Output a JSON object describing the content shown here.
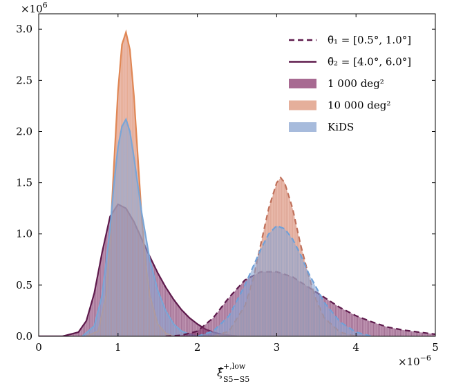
{
  "chart_data": {
    "type": "area",
    "title": "",
    "xlabel": "ξ̂",
    "xlabel_sup": "+,low",
    "xlabel_sub": "S5−S5",
    "x_scale_label": "×10",
    "x_scale_exp": "−6",
    "y_scale_label": "×10",
    "y_scale_exp": "6",
    "xlim": [
      0,
      5
    ],
    "ylim": [
      0,
      3.15
    ],
    "xticks": [
      0,
      1,
      2,
      3,
      4,
      5
    ],
    "xtick_labels": [
      "0",
      "1",
      "2",
      "3",
      "4",
      "5"
    ],
    "yticks": [
      0,
      0.5,
      1.0,
      1.5,
      2.0,
      2.5,
      3.0
    ],
    "ytick_labels": [
      "0.0",
      "0.5",
      "1.0",
      "1.5",
      "2.0",
      "2.5",
      "3.0"
    ],
    "grid": false,
    "legend_position": "top-right",
    "legend": [
      {
        "label": "θ̄₁ = [0.5°, 1.0°]",
        "style": "dashed-line",
        "color": "#5e1a4c"
      },
      {
        "label": "θ̄₂ = [4.0°, 6.0°]",
        "style": "solid-line",
        "color": "#5e1a4c"
      },
      {
        "label": "1 000 deg²",
        "style": "patch",
        "color": "#9e5a86"
      },
      {
        "label": "10 000 deg²",
        "style": "patch",
        "color": "#e2a690"
      },
      {
        "label": "KiDS",
        "style": "patch",
        "color": "#9db4d8"
      }
    ],
    "series": [
      {
        "group": "θ̄₂ = [4.0°, 6.0°]",
        "survey": "1 000 deg²",
        "line": "solid",
        "fill": "#8a3e72",
        "stroke": "#5e1a4c",
        "x": [
          0,
          0.3,
          0.5,
          0.6,
          0.7,
          0.8,
          0.9,
          1.0,
          1.1,
          1.2,
          1.3,
          1.4,
          1.5,
          1.6,
          1.7,
          1.8,
          1.9,
          2.0,
          2.1,
          2.2,
          2.3,
          2.4,
          2.5
        ],
        "y": [
          0,
          0.0,
          0.04,
          0.15,
          0.42,
          0.82,
          1.17,
          1.29,
          1.25,
          1.12,
          0.95,
          0.78,
          0.62,
          0.48,
          0.36,
          0.26,
          0.18,
          0.12,
          0.07,
          0.04,
          0.02,
          0.01,
          0.0
        ]
      },
      {
        "group": "θ̄₂ = [4.0°, 6.0°]",
        "survey": "10 000 deg²",
        "line": "solid",
        "fill": "#d9846a",
        "stroke": "#e08755",
        "x": [
          0.6,
          0.75,
          0.85,
          0.9,
          0.95,
          1.0,
          1.05,
          1.1,
          1.15,
          1.2,
          1.25,
          1.3,
          1.35,
          1.4,
          1.5,
          1.6,
          1.7
        ],
        "y": [
          0,
          0.05,
          0.4,
          0.95,
          1.7,
          2.4,
          2.85,
          2.97,
          2.8,
          2.35,
          1.75,
          1.15,
          0.7,
          0.4,
          0.12,
          0.03,
          0
        ]
      },
      {
        "group": "θ̄₂ = [4.0°, 6.0°]",
        "survey": "KiDS",
        "line": "solid",
        "fill": "#8fa8d4",
        "stroke": "#7aa5d6",
        "x": [
          0.55,
          0.7,
          0.8,
          0.9,
          0.95,
          1.0,
          1.05,
          1.1,
          1.15,
          1.2,
          1.3,
          1.4,
          1.5,
          1.6,
          1.7,
          1.8,
          1.9,
          2.0
        ],
        "y": [
          0,
          0.1,
          0.4,
          1.05,
          1.5,
          1.85,
          2.05,
          2.12,
          2.0,
          1.75,
          1.2,
          0.75,
          0.45,
          0.25,
          0.12,
          0.05,
          0.02,
          0
        ]
      },
      {
        "group": "θ̄₁ = [0.5°, 1.0°]",
        "survey": "1 000 deg²",
        "line": "dashed",
        "fill": "#8a3e72",
        "stroke": "#5e1a4c",
        "x": [
          1.6,
          1.8,
          2.0,
          2.2,
          2.4,
          2.6,
          2.8,
          3.0,
          3.2,
          3.4,
          3.6,
          3.8,
          4.0,
          4.2,
          4.4,
          4.6,
          4.8,
          5.0
        ],
        "y": [
          0,
          0.01,
          0.05,
          0.18,
          0.38,
          0.55,
          0.63,
          0.63,
          0.58,
          0.48,
          0.38,
          0.28,
          0.2,
          0.14,
          0.09,
          0.06,
          0.04,
          0.02
        ]
      },
      {
        "group": "θ̄₁ = [0.5°, 1.0°]",
        "survey": "10 000 deg²",
        "line": "dashed",
        "fill": "#d9846a",
        "stroke": "#c0705a",
        "x": [
          2.2,
          2.4,
          2.6,
          2.7,
          2.8,
          2.9,
          3.0,
          3.05,
          3.1,
          3.2,
          3.3,
          3.4,
          3.5,
          3.6,
          3.8,
          4.0
        ],
        "y": [
          0,
          0.05,
          0.3,
          0.55,
          0.9,
          1.25,
          1.5,
          1.55,
          1.5,
          1.25,
          0.9,
          0.6,
          0.35,
          0.18,
          0.04,
          0
        ]
      },
      {
        "group": "θ̄₁ = [0.5°, 1.0°]",
        "survey": "KiDS",
        "line": "dashed",
        "fill": "#8fa8d4",
        "stroke": "#6fa0d8",
        "x": [
          2.0,
          2.2,
          2.4,
          2.6,
          2.8,
          2.9,
          3.0,
          3.1,
          3.2,
          3.3,
          3.4,
          3.6,
          3.8,
          4.0,
          4.2
        ],
        "y": [
          0,
          0.05,
          0.2,
          0.5,
          0.85,
          1.0,
          1.08,
          1.05,
          0.95,
          0.8,
          0.62,
          0.33,
          0.14,
          0.04,
          0
        ]
      }
    ]
  }
}
